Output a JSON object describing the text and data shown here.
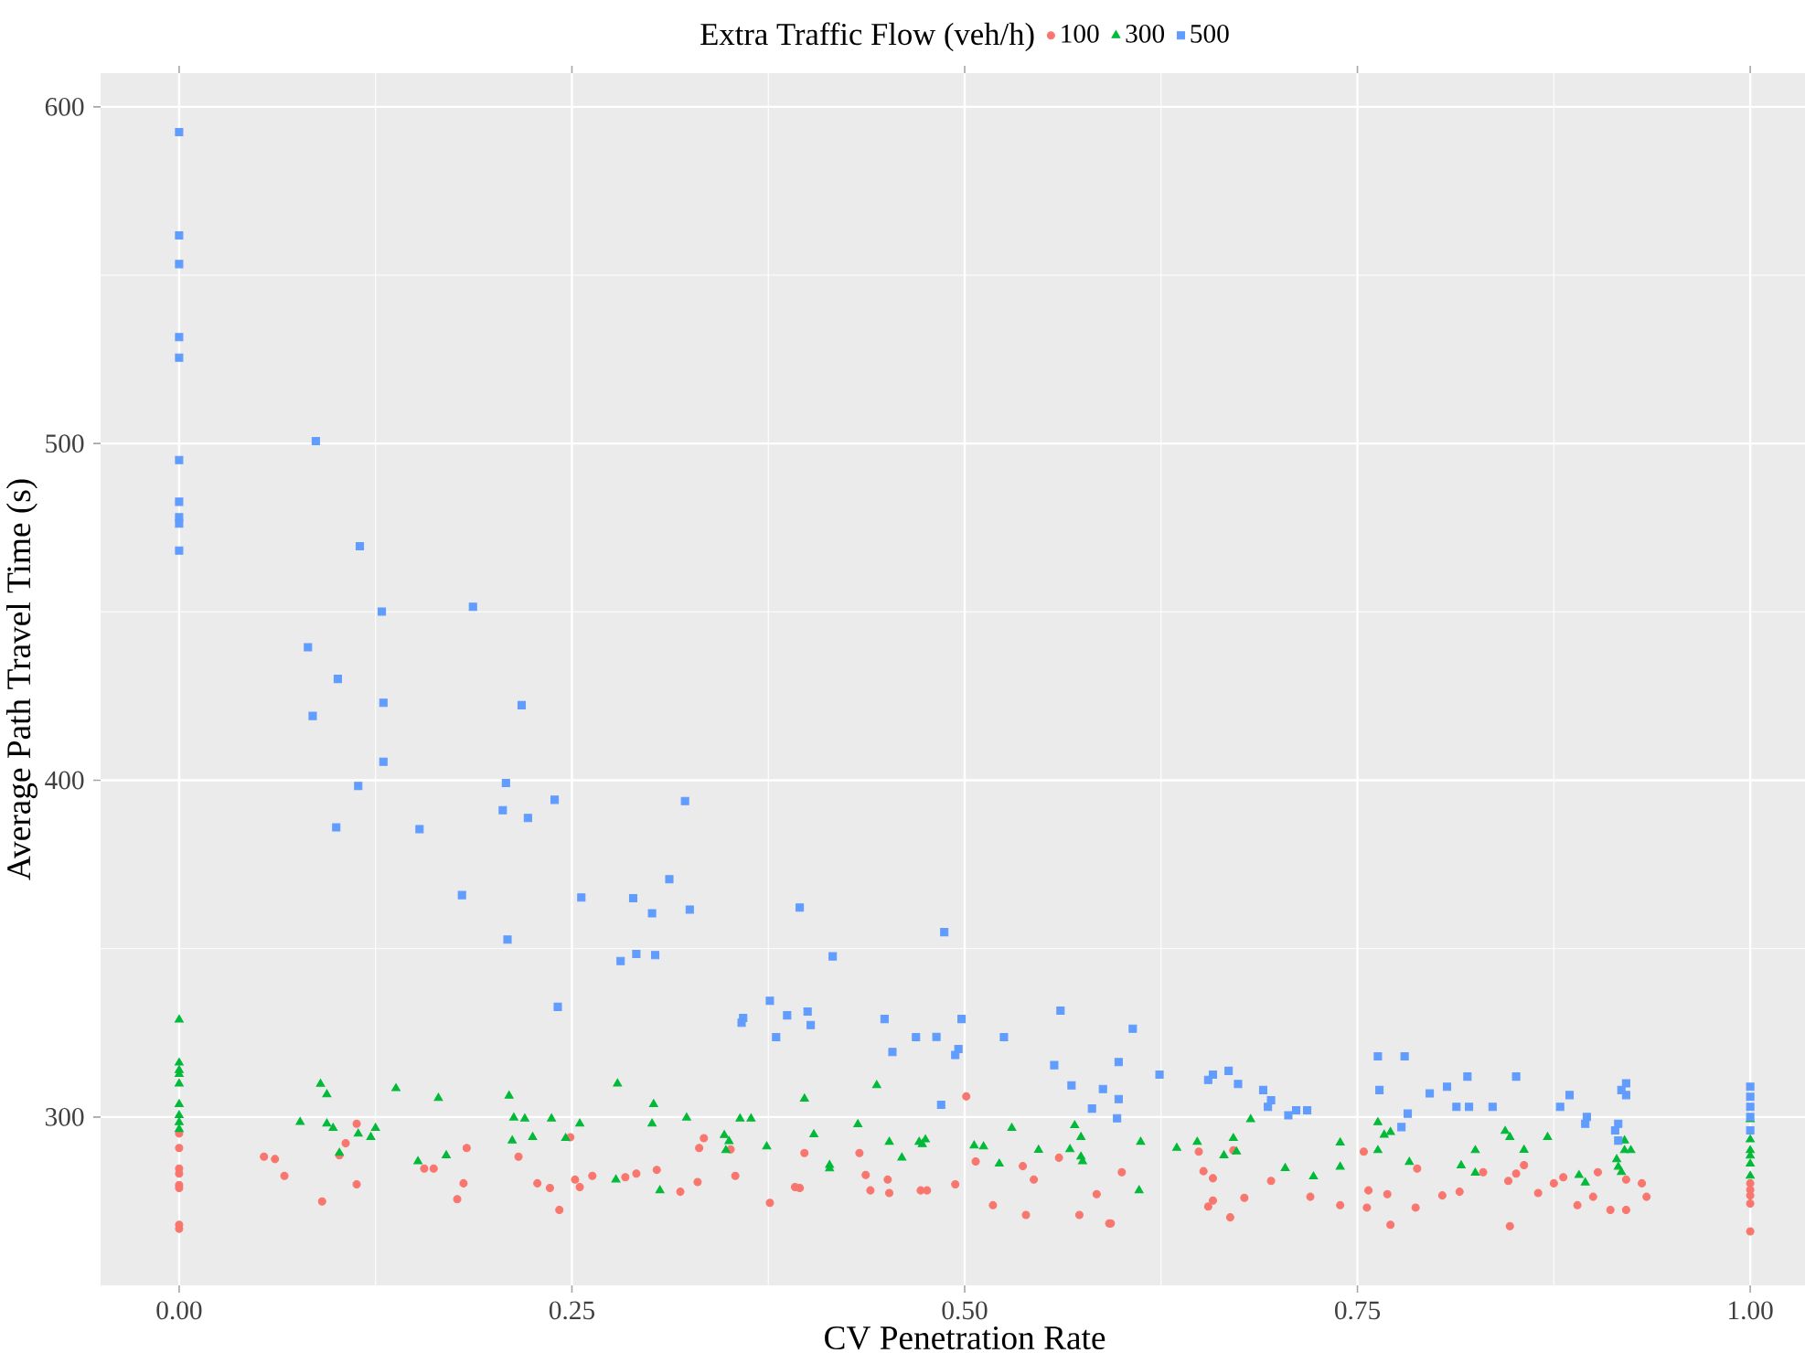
{
  "chart_data": {
    "type": "scatter",
    "xlabel": "CV Penetration Rate",
    "ylabel": "Average Path Travel Time (s)",
    "legend_title": "Extra Traffic Flow (veh/h)",
    "legend": "top",
    "grid": true,
    "xlim": [
      -0.05,
      1.05
    ],
    "ylim": [
      250,
      610
    ],
    "xticks": [
      {
        "value": 0,
        "label": "0.00"
      },
      {
        "value": 0.25,
        "label": "0.25"
      },
      {
        "value": 0.5,
        "label": "0.50"
      },
      {
        "value": 0.75,
        "label": "0.75"
      },
      {
        "value": 1,
        "label": "1.00"
      }
    ],
    "yticks": [
      300,
      400,
      500,
      600
    ],
    "series": [
      {
        "name": "100",
        "color": "#f8766d",
        "marker": "circle",
        "x": [
          0,
          0,
          0,
          0,
          0,
          0,
          0,
          0,
          0.054,
          0.061,
          0.067,
          0.091,
          0.102,
          0.106,
          0.113,
          0.113,
          0.156,
          0.162,
          0.183,
          0.181,
          0.177,
          0.216,
          0.228,
          0.236,
          0.242,
          0.249,
          0.252,
          0.255,
          0.263,
          0.284,
          0.291,
          0.304,
          0.319,
          0.33,
          0.331,
          0.334,
          0.351,
          0.354,
          0.376,
          0.392,
          0.395,
          0.398,
          0.433,
          0.437,
          0.44,
          0.451,
          0.452,
          0.472,
          0.476,
          0.494,
          0.501,
          0.507,
          0.518,
          0.537,
          0.544,
          0.539,
          0.56,
          0.573,
          0.584,
          0.592,
          0.593,
          0.6,
          0.649,
          0.652,
          0.658,
          0.655,
          0.658,
          0.669,
          0.678,
          0.671,
          0.695,
          0.72,
          0.739,
          0.754,
          0.757,
          0.756,
          0.769,
          0.771,
          0.788,
          0.787,
          0.804,
          0.815,
          0.83,
          0.846,
          0.851,
          0.856,
          0.847,
          0.865,
          0.875,
          0.881,
          0.903,
          0.89,
          0.9,
          0.911,
          0.921,
          0.921,
          0.931,
          0.934,
          1,
          1,
          1,
          1,
          1
        ],
        "values": [
          295.1,
          290.8,
          284.7,
          283.2,
          279.8,
          278.9,
          268,
          266.8,
          288.2,
          287.5,
          282.5,
          274.9,
          288.6,
          292.2,
          298,
          280,
          284.7,
          284.7,
          290.8,
          280.3,
          275.6,
          288.2,
          280.3,
          278.9,
          272.4,
          294,
          281.4,
          279.2,
          282.5,
          282.1,
          283.2,
          284.3,
          277.8,
          280.7,
          290.8,
          293.7,
          290.4,
          282.5,
          274.5,
          279.2,
          278.9,
          289.3,
          289.3,
          282.8,
          278.2,
          281.4,
          277.4,
          278.2,
          278.2,
          280,
          306.1,
          286.8,
          273.8,
          285.4,
          281.4,
          270.9,
          287.9,
          270.9,
          277.1,
          268.4,
          268.4,
          283.6,
          289.7,
          283.9,
          281.8,
          273.4,
          275.2,
          270.2,
          276,
          290.1,
          281,
          276.3,
          273.8,
          289.7,
          278.2,
          273.1,
          277.1,
          268,
          284.7,
          273.1,
          276.7,
          277.8,
          283.6,
          281,
          283.2,
          285.7,
          267.6,
          277.4,
          280.3,
          282.1,
          283.6,
          273.8,
          276.3,
          272.4,
          272.4,
          281.4,
          280.3,
          276.3,
          280.3,
          278.4,
          276.7,
          274.3,
          266
        ]
      },
      {
        "name": "300",
        "color": "#00ba38",
        "marker": "triangle",
        "x": [
          0,
          0,
          0,
          0,
          0,
          0,
          0,
          0,
          0,
          0.09,
          0.094,
          0.077,
          0.094,
          0.098,
          0.102,
          0.114,
          0.122,
          0.125,
          0.138,
          0.165,
          0.152,
          0.17,
          0.21,
          0.213,
          0.22,
          0.212,
          0.225,
          0.237,
          0.246,
          0.255,
          0.279,
          0.278,
          0.302,
          0.301,
          0.306,
          0.323,
          0.357,
          0.364,
          0.347,
          0.35,
          0.348,
          0.374,
          0.398,
          0.404,
          0.414,
          0.414,
          0.432,
          0.444,
          0.452,
          0.46,
          0.471,
          0.473,
          0.475,
          0.506,
          0.512,
          0.522,
          0.53,
          0.547,
          0.567,
          0.57,
          0.574,
          0.574,
          0.575,
          0.612,
          0.611,
          0.635,
          0.648,
          0.671,
          0.665,
          0.673,
          0.682,
          0.704,
          0.722,
          0.739,
          0.739,
          0.763,
          0.767,
          0.771,
          0.763,
          0.783,
          0.816,
          0.825,
          0.825,
          0.844,
          0.847,
          0.856,
          0.871,
          0.891,
          0.895,
          0.915,
          0.916,
          0.918,
          0.92,
          0.92,
          0.924,
          1,
          1,
          1,
          1,
          1,
          1
        ],
        "values": [
          328.9,
          316.1,
          313.9,
          312.7,
          309.9,
          303.8,
          300.5,
          298.4,
          296.4,
          309.8,
          306.7,
          298.5,
          298,
          296.7,
          289.3,
          295,
          294,
          296.7,
          308.5,
          305.6,
          286.8,
          288.6,
          306.3,
          299.8,
          299.5,
          293,
          294,
          299.5,
          293.7,
          298,
          309.9,
          281.4,
          303.8,
          298,
          278.2,
          299.8,
          299.5,
          299.5,
          294.6,
          292.8,
          290.1,
          291.2,
          305.4,
          294.8,
          285.7,
          284.7,
          297.8,
          309.4,
          292.6,
          287.9,
          292.6,
          291.9,
          293.3,
          291.5,
          291.2,
          286.1,
          296.7,
          290.2,
          290.4,
          297.5,
          294,
          288.2,
          286.8,
          292.6,
          278.2,
          290.8,
          292.6,
          293.7,
          288.6,
          289.7,
          299.3,
          284.8,
          282.3,
          292.4,
          285.2,
          298.4,
          294.7,
          295.5,
          290.1,
          286.6,
          285.6,
          290.1,
          283.4,
          295.8,
          294,
          290.2,
          294,
          282.7,
          280.5,
          287.4,
          285.2,
          283.6,
          293,
          290.1,
          290.1,
          299.3,
          293.3,
          290.1,
          288.5,
          286.1,
          282.5
        ]
      },
      {
        "name": "500",
        "color": "#619cff",
        "marker": "square",
        "x": [
          0,
          0,
          0,
          0,
          0,
          0,
          0,
          0,
          0,
          0,
          0.087,
          0.115,
          0.129,
          0.187,
          0.082,
          0.101,
          0.085,
          0.13,
          0.218,
          0.13,
          0.114,
          0.208,
          0.1,
          0.153,
          0.206,
          0.222,
          0.239,
          0.322,
          0.18,
          0.256,
          0.289,
          0.312,
          0.301,
          0.325,
          0.209,
          0.291,
          0.303,
          0.281,
          0.241,
          0.395,
          0.487,
          0.416,
          0.376,
          0.359,
          0.358,
          0.387,
          0.4,
          0.402,
          0.38,
          0.449,
          0.454,
          0.469,
          0.482,
          0.498,
          0.496,
          0.494,
          0.485,
          0.525,
          0.561,
          0.557,
          0.568,
          0.581,
          0.588,
          0.598,
          0.598,
          0.597,
          0.607,
          0.624,
          0.655,
          0.658,
          0.668,
          0.674,
          0.69,
          0.695,
          0.693,
          0.706,
          0.711,
          0.718,
          0.763,
          0.78,
          0.764,
          0.782,
          0.778,
          0.796,
          0.807,
          0.813,
          0.821,
          0.82,
          0.836,
          0.851,
          0.879,
          0.885,
          0.896,
          0.895,
          0.914,
          0.916,
          0.916,
          0.918,
          0.921,
          0.921,
          1,
          1,
          1,
          1,
          1
        ],
        "values": [
          592.5,
          561.8,
          553.3,
          531.6,
          525.5,
          495.1,
          482.7,
          478.1,
          476.2,
          468.2,
          500.7,
          469.5,
          450.1,
          451.5,
          439.5,
          430.1,
          419.1,
          423,
          422.3,
          405.5,
          398.3,
          399.2,
          386,
          385.5,
          391.1,
          388.8,
          394.2,
          393.8,
          365.9,
          365.2,
          365,
          370.6,
          360.5,
          361.6,
          352.7,
          348.4,
          348.1,
          346.3,
          332.7,
          362.2,
          354.9,
          347.7,
          334.5,
          329.4,
          328,
          330.2,
          331.3,
          327.3,
          323.7,
          329.1,
          319.3,
          323.7,
          323.8,
          329.1,
          320.2,
          318.4,
          303.6,
          323.7,
          331.6,
          315.4,
          309.4,
          302.5,
          308.3,
          316.3,
          305.3,
          299.6,
          326.2,
          312.6,
          311,
          312.6,
          313.7,
          309.8,
          308,
          305,
          303,
          300.5,
          302,
          302,
          318,
          318,
          308,
          301,
          297,
          307,
          309,
          303,
          303,
          312,
          303,
          312,
          303,
          306.5,
          300,
          298,
          296,
          298,
          293,
          308,
          310,
          306.5,
          309,
          306,
          303,
          300,
          296
        ]
      }
    ]
  }
}
